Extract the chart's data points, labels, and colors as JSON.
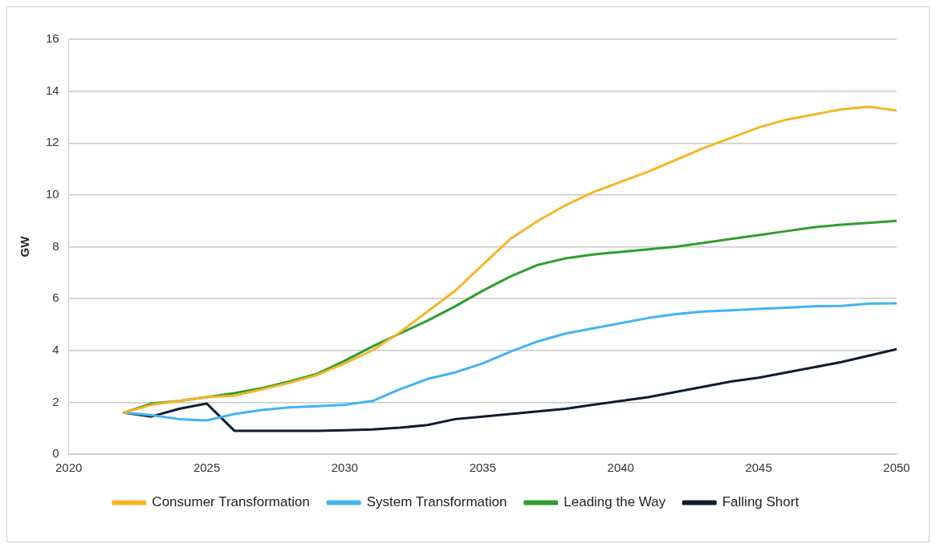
{
  "chart_data": {
    "type": "line",
    "ylabel": "GW",
    "x": [
      2022,
      2023,
      2024,
      2025,
      2026,
      2027,
      2028,
      2029,
      2030,
      2031,
      2032,
      2033,
      2034,
      2035,
      2036,
      2037,
      2038,
      2039,
      2040,
      2041,
      2042,
      2043,
      2044,
      2045,
      2046,
      2047,
      2048,
      2049,
      2050
    ],
    "series": [
      {
        "name": "Consumer Transformation",
        "color": "#f5b629",
        "values": [
          1.6,
          1.9,
          2.05,
          2.2,
          2.25,
          2.5,
          2.75,
          3.05,
          3.5,
          4.0,
          4.7,
          5.5,
          6.3,
          7.3,
          8.3,
          9.0,
          9.6,
          10.1,
          10.5,
          10.9,
          11.35,
          11.8,
          12.2,
          12.6,
          12.9,
          13.1,
          13.3,
          13.4,
          13.25
        ]
      },
      {
        "name": "System Transformation",
        "color": "#44b3f0",
        "values": [
          1.6,
          1.5,
          1.35,
          1.3,
          1.55,
          1.7,
          1.8,
          1.85,
          1.9,
          2.05,
          2.5,
          2.9,
          3.15,
          3.5,
          3.95,
          4.35,
          4.65,
          4.85,
          5.05,
          5.25,
          5.4,
          5.5,
          5.55,
          5.6,
          5.65,
          5.7,
          5.72,
          5.8,
          5.82
        ]
      },
      {
        "name": "Leading the Way",
        "color": "#2e9e2e",
        "values": [
          1.6,
          1.95,
          2.05,
          2.2,
          2.35,
          2.55,
          2.8,
          3.1,
          3.6,
          4.15,
          4.65,
          5.15,
          5.7,
          6.3,
          6.85,
          7.3,
          7.55,
          7.7,
          7.8,
          7.9,
          8.0,
          8.15,
          8.3,
          8.45,
          8.6,
          8.75,
          8.85,
          8.92,
          9.0
        ]
      },
      {
        "name": "Falling Short",
        "color": "#0f1c2e",
        "values": [
          1.6,
          1.45,
          1.75,
          1.95,
          0.9,
          0.9,
          0.9,
          0.9,
          0.92,
          0.95,
          1.02,
          1.12,
          1.35,
          1.45,
          1.55,
          1.65,
          1.75,
          1.9,
          2.05,
          2.2,
          2.4,
          2.6,
          2.8,
          2.95,
          3.15,
          3.35,
          3.55,
          3.8,
          4.05
        ]
      }
    ],
    "xlim": [
      2020,
      2050
    ],
    "xticks": [
      2020,
      2025,
      2030,
      2035,
      2040,
      2045,
      2050
    ],
    "ylim": [
      0,
      16
    ],
    "yticks": [
      0,
      2,
      4,
      6,
      8,
      10,
      12,
      14,
      16
    ],
    "grid": "y",
    "legend": "bottom",
    "marker": "none",
    "line_style": "solid"
  }
}
